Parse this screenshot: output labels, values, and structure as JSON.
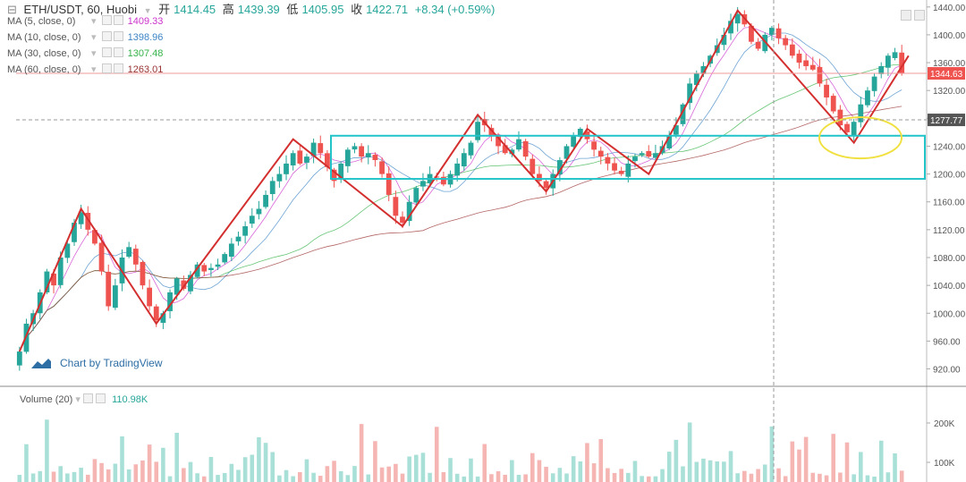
{
  "header": {
    "symbol": "ETH/USDT, 60, Huobi",
    "open_label": "开",
    "open": "1414.45",
    "high_label": "高",
    "high": "1439.39",
    "low_label": "低",
    "low": "1405.95",
    "close_label": "收",
    "close": "1422.71",
    "change": "+8.34 (+0.59%)"
  },
  "ma_indicators": [
    {
      "label": "MA (5, close, 0)",
      "value": "1409.33",
      "color": "#cc33cc"
    },
    {
      "label": "MA (10, close, 0)",
      "value": "1398.96",
      "color": "#3d85c6"
    },
    {
      "label": "MA (30, close, 0)",
      "value": "1307.48",
      "color": "#35b34a"
    },
    {
      "label": "MA (60, close, 0)",
      "value": "1263.01",
      "color": "#993333"
    }
  ],
  "watermark": "Chart by TradingView",
  "volume": {
    "label": "Volume (20)",
    "value": "110.98K"
  },
  "price_tags": {
    "current": "1344.63",
    "crosshair": "1277.77"
  },
  "colors": {
    "up": "#26a69a",
    "down": "#ef5350",
    "zigzag": "#d32f2f",
    "box": "#22c4c9",
    "ellipse": "#f0e040"
  },
  "chart_data": {
    "type": "candlestick",
    "y_axis": {
      "ticks": [
        920,
        960,
        1000,
        1040,
        1080,
        1120,
        1160,
        1200,
        1240,
        1280,
        1320,
        1360,
        1400,
        1440
      ],
      "ylim": [
        895,
        1450
      ]
    },
    "volume_axis": {
      "ticks": [
        "100K",
        "200K"
      ]
    },
    "closes": [
      945,
      985,
      1000,
      1030,
      1060,
      1040,
      1080,
      1100,
      1130,
      1145,
      1120,
      1100,
      1060,
      1010,
      1040,
      1080,
      1095,
      1070,
      1040,
      1010,
      990,
      1000,
      1030,
      1050,
      1035,
      1055,
      1070,
      1060,
      1065,
      1070,
      1085,
      1100,
      1110,
      1125,
      1140,
      1150,
      1170,
      1190,
      1200,
      1215,
      1230,
      1215,
      1225,
      1245,
      1230,
      1210,
      1190,
      1215,
      1235,
      1240,
      1225,
      1230,
      1220,
      1200,
      1170,
      1140,
      1130,
      1160,
      1180,
      1190,
      1200,
      1195,
      1185,
      1200,
      1215,
      1230,
      1245,
      1275,
      1270,
      1255,
      1240,
      1230,
      1235,
      1250,
      1225,
      1200,
      1190,
      1180,
      1200,
      1220,
      1240,
      1255,
      1265,
      1250,
      1235,
      1225,
      1215,
      1205,
      1200,
      1215,
      1225,
      1230,
      1225,
      1230,
      1240,
      1255,
      1270,
      1300,
      1330,
      1345,
      1355,
      1370,
      1385,
      1400,
      1420,
      1430,
      1415,
      1390,
      1380,
      1400,
      1410,
      1395,
      1385,
      1370,
      1360,
      1355,
      1350,
      1330,
      1310,
      1290,
      1270,
      1260,
      1275,
      1300,
      1320,
      1340,
      1355,
      1370,
      1375,
      1345
    ],
    "series_overlays": [
      "MA 5",
      "MA 10",
      "MA 30",
      "MA 60"
    ]
  }
}
